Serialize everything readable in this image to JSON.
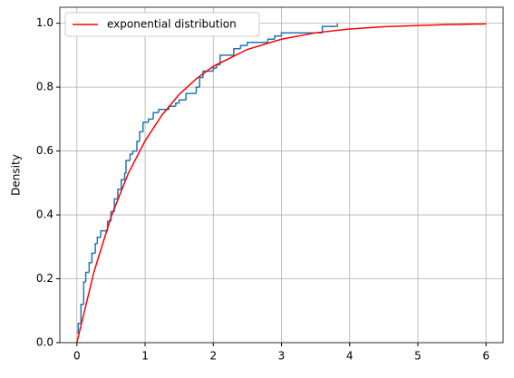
{
  "chart_data": {
    "type": "ecdf-line",
    "ylabel": "Density",
    "xlim": [
      -0.25,
      6.25
    ],
    "xticks": [
      0,
      1,
      2,
      3,
      4,
      5,
      6
    ],
    "ylim": [
      0,
      1.05
    ],
    "yticks": [
      {
        "value": 0,
        "label": "0.0"
      },
      0.2,
      0.4,
      0.6,
      0.8,
      {
        "value": 1,
        "label": "1.0"
      }
    ],
    "grid": true,
    "legend": "upper left",
    "series": [
      {
        "kind": "step",
        "color": "#1f77b4",
        "x": [
          0.0,
          0.02,
          0.06,
          0.1,
          0.13,
          0.18,
          0.22,
          0.27,
          0.3,
          0.35,
          0.45,
          0.5,
          0.55,
          0.6,
          0.65,
          0.7,
          0.72,
          0.78,
          0.82,
          0.88,
          0.92,
          0.97,
          1.05,
          1.12,
          1.2,
          1.35,
          1.45,
          1.5,
          1.6,
          1.75,
          1.8,
          1.85,
          2.0,
          2.05,
          2.1,
          2.3,
          2.4,
          2.5,
          2.8,
          2.9,
          3.0,
          3.6,
          3.82
        ],
        "values": [
          0.03,
          0.06,
          0.12,
          0.19,
          0.22,
          0.25,
          0.28,
          0.31,
          0.33,
          0.35,
          0.38,
          0.41,
          0.45,
          0.48,
          0.51,
          0.53,
          0.57,
          0.59,
          0.6,
          0.63,
          0.66,
          0.69,
          0.7,
          0.72,
          0.73,
          0.74,
          0.75,
          0.76,
          0.78,
          0.8,
          0.83,
          0.85,
          0.86,
          0.87,
          0.9,
          0.92,
          0.93,
          0.94,
          0.95,
          0.96,
          0.97,
          0.99,
          1.0
        ]
      },
      {
        "kind": "line",
        "name": "exponential distribution",
        "color": "#ff0000",
        "x": [
          0,
          0.25,
          0.5,
          0.75,
          1,
          1.25,
          1.5,
          1.75,
          2,
          2.5,
          3,
          3.5,
          4,
          4.5,
          5,
          5.5,
          6
        ],
        "values": [
          0,
          0.221,
          0.393,
          0.528,
          0.632,
          0.713,
          0.777,
          0.826,
          0.865,
          0.918,
          0.95,
          0.97,
          0.982,
          0.989,
          0.993,
          0.996,
          0.998
        ]
      }
    ]
  }
}
